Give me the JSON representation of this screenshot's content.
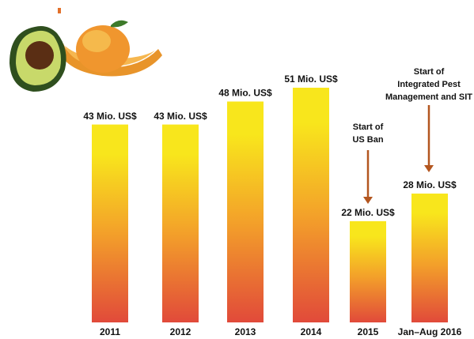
{
  "chart_data": {
    "type": "bar",
    "categories": [
      "2011",
      "2012",
      "2013",
      "2014",
      "2015",
      "Jan–Aug 2016"
    ],
    "values": [
      43,
      43,
      48,
      51,
      22,
      28
    ],
    "value_labels": [
      "43 Mio. US$",
      "43 Mio. US$",
      "48 Mio. US$",
      "51 Mio. US$",
      "22 Mio. US$",
      "28 Mio. US$"
    ],
    "color_top": "#f8e61c",
    "color_bottom": "#e14a3a",
    "annotations": [
      {
        "lines": [
          "Start of",
          "US Ban"
        ],
        "color": "#b3561f"
      },
      {
        "lines": [
          "Start of",
          "Integrated Pest",
          "Management and SIT"
        ],
        "color": "#b3561f"
      }
    ]
  }
}
